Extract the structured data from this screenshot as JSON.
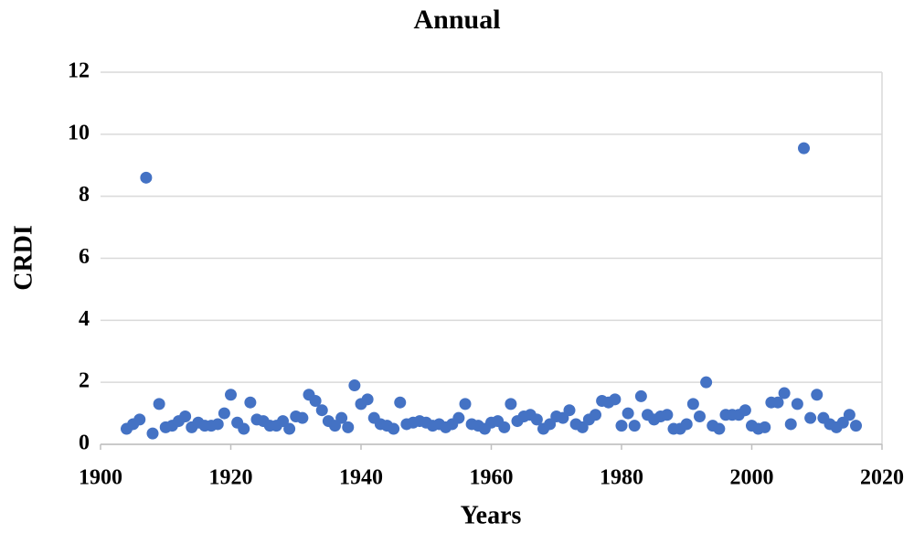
{
  "chart_data": {
    "type": "scatter",
    "title": "Annual",
    "x_label": "Years",
    "y_label": "CRDI",
    "color": "#4472c4",
    "grid": true,
    "xlim": [
      1900,
      2020
    ],
    "xticks": [
      1900,
      1920,
      1940,
      1960,
      1980,
      2000,
      2020
    ],
    "ylim": [
      0,
      12
    ],
    "yticks": [
      0,
      2,
      4,
      6,
      8,
      10,
      12
    ],
    "x": [
      1904,
      1905,
      1906,
      1907,
      1908,
      1909,
      1910,
      1911,
      1912,
      1913,
      1914,
      1915,
      1916,
      1917,
      1918,
      1919,
      1920,
      1921,
      1922,
      1923,
      1924,
      1925,
      1926,
      1927,
      1928,
      1929,
      1930,
      1931,
      1932,
      1933,
      1934,
      1935,
      1936,
      1937,
      1938,
      1939,
      1940,
      1941,
      1942,
      1943,
      1944,
      1945,
      1946,
      1947,
      1948,
      1949,
      1950,
      1951,
      1952,
      1953,
      1954,
      1955,
      1956,
      1957,
      1958,
      1959,
      1960,
      1961,
      1962,
      1963,
      1964,
      1965,
      1966,
      1967,
      1968,
      1969,
      1970,
      1971,
      1972,
      1973,
      1974,
      1975,
      1976,
      1977,
      1978,
      1979,
      1980,
      1981,
      1982,
      1983,
      1984,
      1985,
      1986,
      1987,
      1988,
      1989,
      1990,
      1991,
      1992,
      1993,
      1994,
      1995,
      1996,
      1997,
      1998,
      1999,
      2000,
      2001,
      2002,
      2003,
      2004,
      2005,
      2006,
      2007,
      2008,
      2009,
      2010,
      2011,
      2012,
      2013,
      2014,
      2015,
      2016
    ],
    "values": [
      0.5,
      0.65,
      0.8,
      8.6,
      0.35,
      1.3,
      0.55,
      0.6,
      0.75,
      0.9,
      0.55,
      0.7,
      0.6,
      0.6,
      0.65,
      1.0,
      1.6,
      0.7,
      0.5,
      1.35,
      0.8,
      0.75,
      0.6,
      0.6,
      0.75,
      0.5,
      0.9,
      0.85,
      1.6,
      1.4,
      1.1,
      0.75,
      0.6,
      0.85,
      0.55,
      1.9,
      1.3,
      1.45,
      0.85,
      0.65,
      0.6,
      0.5,
      1.35,
      0.65,
      0.7,
      0.75,
      0.7,
      0.6,
      0.65,
      0.55,
      0.65,
      0.85,
      1.3,
      0.65,
      0.6,
      0.5,
      0.7,
      0.75,
      0.55,
      1.3,
      0.75,
      0.9,
      0.95,
      0.8,
      0.5,
      0.65,
      0.9,
      0.85,
      1.1,
      0.65,
      0.55,
      0.8,
      0.95,
      1.4,
      1.35,
      1.45,
      0.6,
      1.0,
      0.6,
      1.55,
      0.95,
      0.8,
      0.9,
      0.95,
      0.5,
      0.5,
      0.65,
      1.3,
      0.9,
      2.0,
      0.6,
      0.5,
      0.95,
      0.95,
      0.95,
      1.1,
      0.6,
      0.5,
      0.55,
      1.35,
      1.35,
      1.65,
      0.65,
      1.3,
      9.55,
      0.85,
      1.6,
      0.85,
      0.65,
      0.55,
      0.7,
      0.95,
      0.6
    ]
  }
}
